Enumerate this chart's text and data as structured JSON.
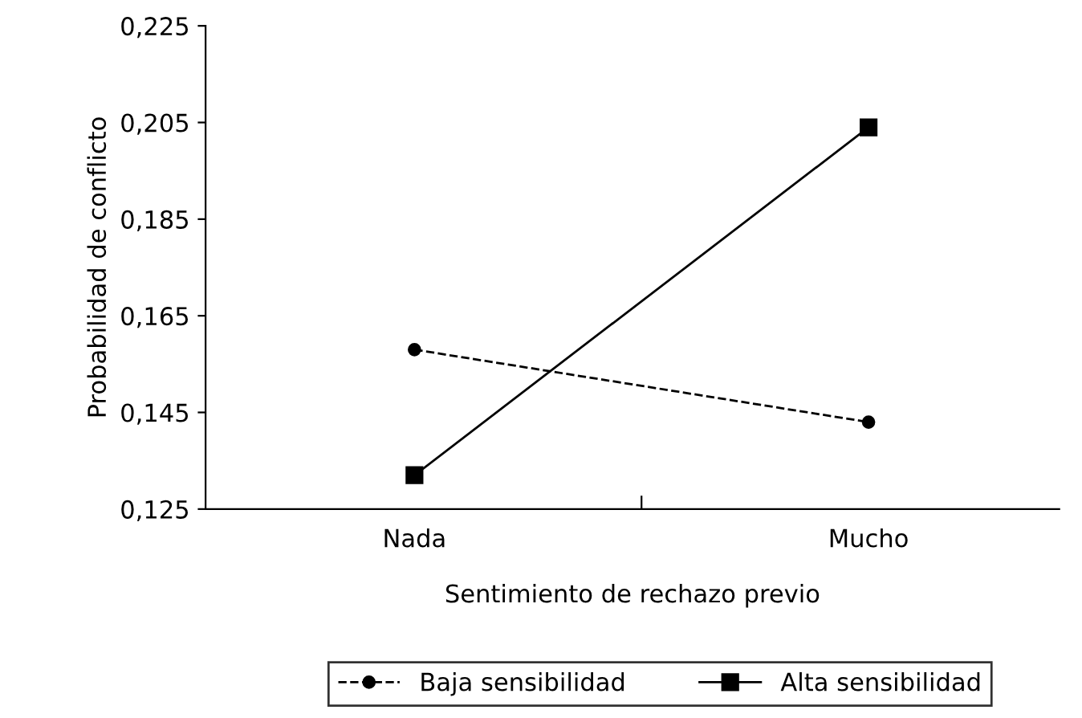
{
  "chart_data": {
    "type": "line",
    "xlabel": "Sentimiento de rechazo previo",
    "ylabel": "Probabilidad de conflicto",
    "categories": [
      "Nada",
      "Mucho"
    ],
    "series": [
      {
        "name": "Baja sensibilidad",
        "color": "#000000",
        "values": [
          0.158,
          0.143
        ],
        "marker": "circle",
        "line_style": "dashed"
      },
      {
        "name": "Alta sensibilidad",
        "color": "#000000",
        "values": [
          0.132,
          0.204
        ],
        "marker": "square",
        "line_style": "solid"
      }
    ],
    "ylim": [
      0.125,
      0.225
    ],
    "yticks": [
      {
        "value": 0.125,
        "label": "0,125"
      },
      {
        "value": 0.145,
        "label": "0,145"
      },
      {
        "value": 0.165,
        "label": "0,165"
      },
      {
        "value": 0.185,
        "label": "0,185"
      },
      {
        "value": 0.205,
        "label": "0,205"
      },
      {
        "value": 0.225,
        "label": "0,225"
      }
    ],
    "grid": false,
    "legend": "bottom"
  }
}
